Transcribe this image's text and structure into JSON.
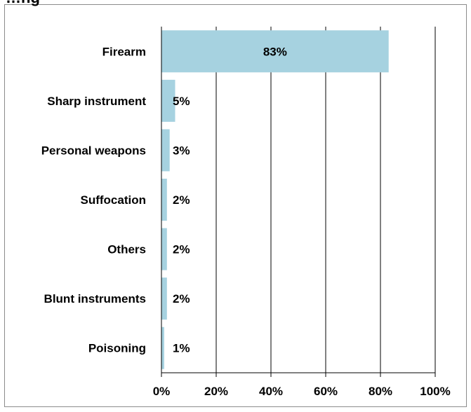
{
  "chart_data": {
    "type": "bar",
    "orientation": "horizontal",
    "title": "…ng",
    "categories": [
      "Firearm",
      "Sharp instrument",
      "Personal weapons",
      "Suffocation",
      "Others",
      "Blunt instruments",
      "Poisoning"
    ],
    "values": [
      83,
      5,
      3,
      2,
      2,
      2,
      1
    ],
    "value_labels": [
      "83%",
      "5%",
      "3%",
      "2%",
      "2%",
      "2%",
      "1%"
    ],
    "xlim": [
      0,
      100
    ],
    "xticks": [
      0,
      20,
      40,
      60,
      80,
      100
    ],
    "xtick_labels": [
      "0%",
      "20%",
      "40%",
      "60%",
      "80%",
      "100%"
    ],
    "grid": true,
    "bar_color": "#a6d2e0"
  }
}
